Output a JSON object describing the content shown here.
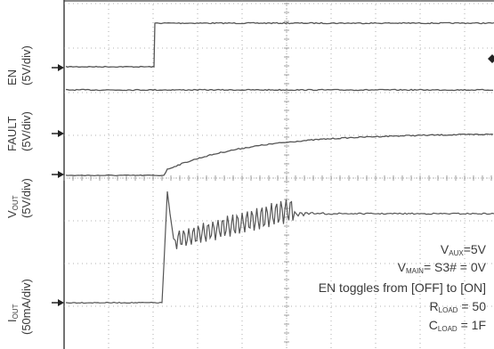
{
  "chart_data": {
    "type": "line",
    "grid": true,
    "channels": [
      {
        "name_main": "EN",
        "name_sub": "",
        "scale": "(5V/div)"
      },
      {
        "name_main": "FAULT",
        "name_sub": "",
        "scale": "(5V/div)"
      },
      {
        "name_main": "V",
        "name_sub": "OUT",
        "scale": "(5V/div)"
      },
      {
        "name_main": "I",
        "name_sub": "OUT",
        "scale": "(50mA/div)"
      }
    ],
    "annotations": {
      "vaux": {
        "main": "V",
        "sub": "AUX",
        "rest": "=5V"
      },
      "vmain": {
        "main": "V",
        "sub": "MAIN",
        "rest": "= S3# = 0V"
      },
      "en_toggle": "EN toggles from [OFF] to [ON]",
      "rload": {
        "main": "R",
        "sub": "LOAD",
        "rest": " = 50"
      },
      "cload": {
        "main": "C",
        "sub": "LOAD",
        "rest": " = 1F"
      }
    }
  }
}
